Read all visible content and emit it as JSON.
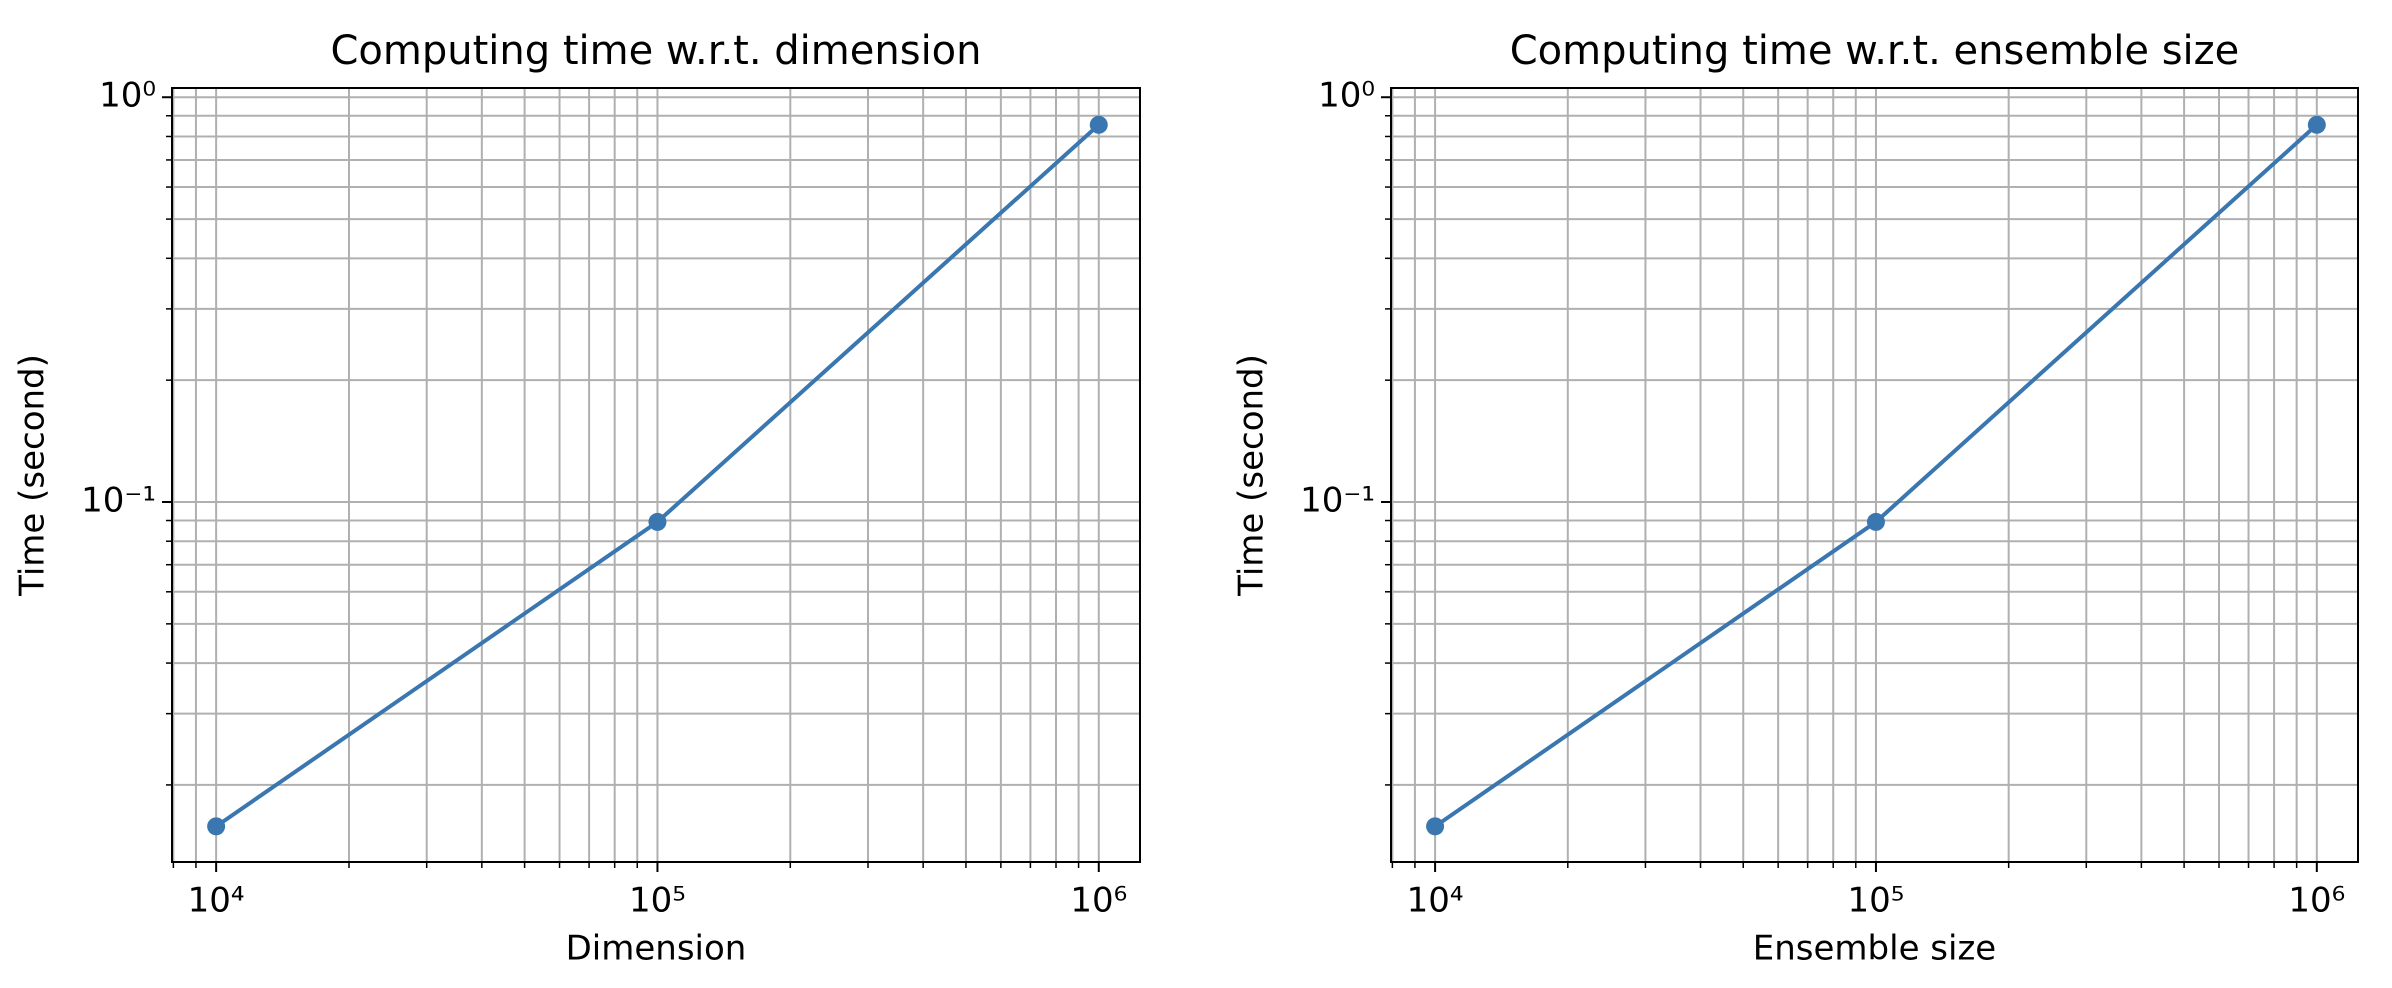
{
  "chart_data": [
    {
      "type": "line",
      "title": "Computing time w.r.t. dimension",
      "xlabel": "Dimension",
      "ylabel": "Time (second)",
      "x": [
        10000,
        100000,
        1000000
      ],
      "values": [
        0.0158,
        0.0893,
        0.855
      ],
      "color": "#3a76af",
      "marker": "o",
      "xscale": "log",
      "yscale": "log",
      "grid": "both",
      "xlim": [
        7943,
        1240000
      ],
      "ylim": [
        0.0129,
        1.054
      ],
      "xticks": [
        {
          "value": 10000,
          "label": "10⁴"
        },
        {
          "value": 100000,
          "label": "10⁵"
        },
        {
          "value": 1000000,
          "label": "10⁶"
        }
      ],
      "yticks": [
        {
          "value": 0.1,
          "label": "10⁻¹"
        },
        {
          "value": 1,
          "label": "10⁰"
        }
      ],
      "xminorticks": [
        8000,
        9000,
        20000,
        30000,
        40000,
        50000,
        60000,
        70000,
        80000,
        90000,
        200000,
        300000,
        400000,
        500000,
        600000,
        700000,
        800000,
        900000
      ],
      "yminorticks": [
        0.02,
        0.03,
        0.04,
        0.05,
        0.06,
        0.07,
        0.08,
        0.09,
        0.2,
        0.3,
        0.4,
        0.5,
        0.6,
        0.7,
        0.8,
        0.9
      ]
    },
    {
      "type": "line",
      "title": "Computing time w.r.t. ensemble size",
      "xlabel": "Ensemble size",
      "ylabel": "Time (second)",
      "x": [
        10000,
        100000,
        1000000
      ],
      "values": [
        0.0158,
        0.0893,
        0.855
      ],
      "color": "#3a76af",
      "marker": "o",
      "xscale": "log",
      "yscale": "log",
      "grid": "both",
      "xlim": [
        7943,
        1240000
      ],
      "ylim": [
        0.0129,
        1.054
      ],
      "xticks": [
        {
          "value": 10000,
          "label": "10⁴"
        },
        {
          "value": 100000,
          "label": "10⁵"
        },
        {
          "value": 1000000,
          "label": "10⁶"
        }
      ],
      "yticks": [
        {
          "value": 0.1,
          "label": "10⁻¹"
        },
        {
          "value": 1,
          "label": "10⁰"
        }
      ],
      "xminorticks": [
        8000,
        9000,
        20000,
        30000,
        40000,
        50000,
        60000,
        70000,
        80000,
        90000,
        200000,
        300000,
        400000,
        500000,
        600000,
        700000,
        800000,
        900000
      ],
      "yminorticks": [
        0.02,
        0.03,
        0.04,
        0.05,
        0.06,
        0.07,
        0.08,
        0.09,
        0.2,
        0.3,
        0.4,
        0.5,
        0.6,
        0.7,
        0.8,
        0.9
      ]
    }
  ]
}
